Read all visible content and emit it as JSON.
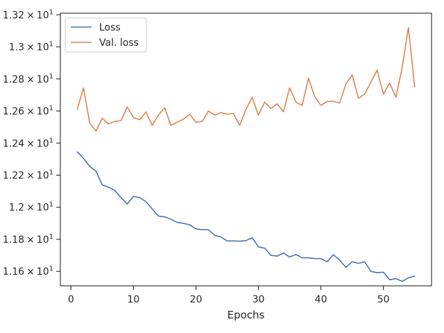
{
  "chart_data": {
    "type": "line",
    "title": "",
    "xlabel": "Epochs",
    "ylabel": "",
    "xlim": [
      -1.7,
      57.7
    ],
    "ylim": [
      11.51,
      13.21
    ],
    "x_ticks": [
      0,
      10,
      20,
      30,
      40,
      50
    ],
    "y_ticks": [
      {
        "value": 11.6,
        "mantissa": "1.16"
      },
      {
        "value": 11.8,
        "mantissa": "1.18"
      },
      {
        "value": 12.0,
        "mantissa": "1.2"
      },
      {
        "value": 12.2,
        "mantissa": "1.22"
      },
      {
        "value": 12.4,
        "mantissa": "1.24"
      },
      {
        "value": 12.6,
        "mantissa": "1.26"
      },
      {
        "value": 12.8,
        "mantissa": "1.28"
      },
      {
        "value": 13.0,
        "mantissa": "1.3"
      },
      {
        "value": 13.2,
        "mantissa": "1.32"
      }
    ],
    "y_tick_times": "×",
    "y_tick_base": "10",
    "y_tick_exponent": "1",
    "grid": false,
    "legend_position": "top-left",
    "x": [
      1,
      2,
      3,
      4,
      5,
      6,
      7,
      8,
      9,
      10,
      11,
      12,
      13,
      14,
      15,
      16,
      17,
      18,
      19,
      20,
      21,
      22,
      23,
      24,
      25,
      26,
      27,
      28,
      29,
      30,
      31,
      32,
      33,
      34,
      35,
      36,
      37,
      38,
      39,
      40,
      41,
      42,
      43,
      44,
      45,
      46,
      47,
      48,
      49,
      50,
      51,
      52,
      53,
      54,
      55
    ],
    "series": [
      {
        "name": "Loss",
        "color": "#4c72b0",
        "values": [
          12.345,
          12.305,
          12.255,
          12.225,
          12.14,
          12.125,
          12.105,
          12.06,
          12.02,
          12.068,
          12.06,
          12.035,
          11.99,
          11.945,
          11.94,
          11.925,
          11.905,
          11.9,
          11.89,
          11.865,
          11.86,
          11.86,
          11.825,
          11.815,
          11.79,
          11.79,
          11.788,
          11.792,
          11.81,
          11.752,
          11.745,
          11.7,
          11.695,
          11.715,
          11.69,
          11.705,
          11.685,
          11.685,
          11.68,
          11.68,
          11.66,
          11.705,
          11.67,
          11.625,
          11.66,
          11.65,
          11.66,
          11.6,
          11.592,
          11.595,
          11.548,
          11.555,
          11.538,
          11.56,
          11.57
        ]
      },
      {
        "name": "Val. loss",
        "color": "#dd8452",
        "values": [
          12.61,
          12.745,
          12.525,
          12.475,
          12.555,
          12.52,
          12.535,
          12.54,
          12.625,
          12.56,
          12.545,
          12.595,
          12.51,
          12.575,
          12.62,
          12.51,
          12.53,
          12.55,
          12.58,
          12.53,
          12.535,
          12.6,
          12.575,
          12.59,
          12.58,
          12.585,
          12.51,
          12.61,
          12.685,
          12.575,
          12.655,
          12.615,
          12.645,
          12.595,
          12.745,
          12.655,
          12.635,
          12.805,
          12.69,
          12.635,
          12.66,
          12.66,
          12.65,
          12.77,
          12.825,
          12.68,
          12.705,
          12.78,
          12.855,
          12.705,
          12.775,
          12.685,
          12.87,
          13.12,
          12.75
        ]
      }
    ]
  }
}
